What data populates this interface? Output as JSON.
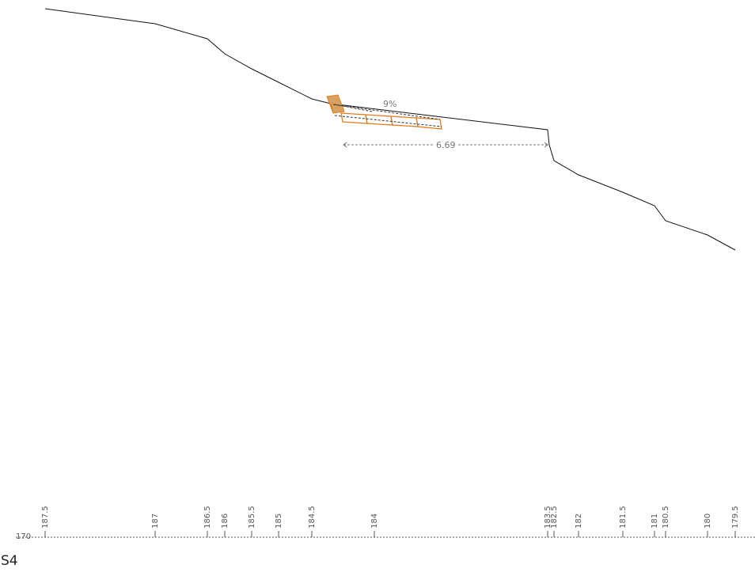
{
  "section": {
    "name": "S4"
  },
  "datum": {
    "label": "170"
  },
  "annotations": {
    "slope": "9%",
    "distance": "6.69"
  },
  "ticks": [
    "187.5",
    "187",
    "186.5",
    "186",
    "185.5",
    "185",
    "184.5",
    "184",
    "183.5",
    "182.5",
    "182",
    "181.5",
    "181",
    "180.5",
    "180",
    "179.5"
  ],
  "colors": {
    "terrain": "#111111",
    "design_fill": "#d9a060",
    "design_outline": "#e07e1e",
    "dimension": "#777777"
  }
}
